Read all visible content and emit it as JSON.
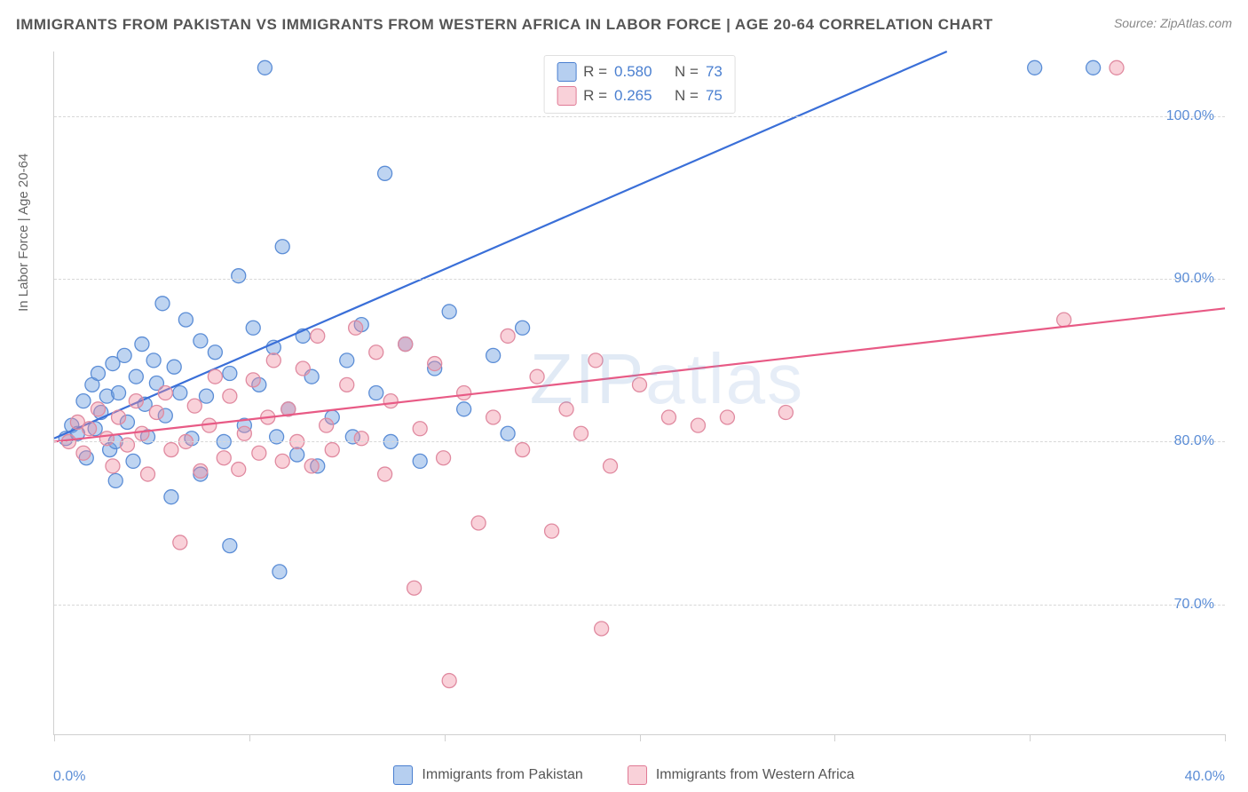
{
  "header": {
    "title": "IMMIGRANTS FROM PAKISTAN VS IMMIGRANTS FROM WESTERN AFRICA IN LABOR FORCE | AGE 20-64 CORRELATION CHART",
    "source_prefix": "Source: ",
    "source_name": "ZipAtlas.com"
  },
  "watermark": {
    "bold": "ZIP",
    "light": "atlas"
  },
  "chart": {
    "type": "scatter",
    "y_axis_title": "In Labor Force | Age 20-64",
    "xlim": [
      0,
      40
    ],
    "ylim": [
      62,
      104
    ],
    "x_ticks": [
      0,
      40
    ],
    "x_tick_labels": [
      "0.0%",
      "40.0%"
    ],
    "x_minor_ticks": [
      0,
      6.67,
      13.33,
      20,
      26.67,
      33.33,
      40
    ],
    "y_ticks": [
      70,
      80,
      90,
      100
    ],
    "y_tick_labels": [
      "70.0%",
      "80.0%",
      "90.0%",
      "100.0%"
    ],
    "grid_color": "#d8d8d8",
    "background_color": "#ffffff",
    "marker_radius": 8,
    "marker_stroke_width": 1.3,
    "line_width": 2.2,
    "series": [
      {
        "id": "pakistan",
        "label": "Immigrants from Pakistan",
        "color_fill": "rgba(110,160,225,0.45)",
        "color_stroke": "#5b8dd6",
        "line_color": "#3a6fd8",
        "R": "0.580",
        "N": "73",
        "trend": {
          "x1": 0,
          "y1": 80.2,
          "x2": 30.5,
          "y2": 104
        },
        "points": [
          [
            0.4,
            80.2
          ],
          [
            0.6,
            81.0
          ],
          [
            0.8,
            80.5
          ],
          [
            1.0,
            82.5
          ],
          [
            1.1,
            79.0
          ],
          [
            1.3,
            83.5
          ],
          [
            1.4,
            80.8
          ],
          [
            1.5,
            84.2
          ],
          [
            1.6,
            81.8
          ],
          [
            1.8,
            82.8
          ],
          [
            1.9,
            79.5
          ],
          [
            2.0,
            84.8
          ],
          [
            2.1,
            80.0
          ],
          [
            2.1,
            77.6
          ],
          [
            2.2,
            83.0
          ],
          [
            2.4,
            85.3
          ],
          [
            2.5,
            81.2
          ],
          [
            2.7,
            78.8
          ],
          [
            2.8,
            84.0
          ],
          [
            3.0,
            86.0
          ],
          [
            3.1,
            82.3
          ],
          [
            3.2,
            80.3
          ],
          [
            3.4,
            85.0
          ],
          [
            3.5,
            83.6
          ],
          [
            3.7,
            88.5
          ],
          [
            3.8,
            81.6
          ],
          [
            4.0,
            76.6
          ],
          [
            4.1,
            84.6
          ],
          [
            4.3,
            83.0
          ],
          [
            4.5,
            87.5
          ],
          [
            4.7,
            80.2
          ],
          [
            5.0,
            86.2
          ],
          [
            5.0,
            78.0
          ],
          [
            5.2,
            82.8
          ],
          [
            5.5,
            85.5
          ],
          [
            5.8,
            80.0
          ],
          [
            6.0,
            84.2
          ],
          [
            6.0,
            73.6
          ],
          [
            6.3,
            90.2
          ],
          [
            6.5,
            81.0
          ],
          [
            6.8,
            87.0
          ],
          [
            7.0,
            83.5
          ],
          [
            7.2,
            103.0
          ],
          [
            7.5,
            85.8
          ],
          [
            7.6,
            80.3
          ],
          [
            7.7,
            72.0
          ],
          [
            7.8,
            92.0
          ],
          [
            8.0,
            82.0
          ],
          [
            8.3,
            79.2
          ],
          [
            8.5,
            86.5
          ],
          [
            8.8,
            84.0
          ],
          [
            9.0,
            78.5
          ],
          [
            9.5,
            81.5
          ],
          [
            10.0,
            85.0
          ],
          [
            10.2,
            80.3
          ],
          [
            10.5,
            87.2
          ],
          [
            11.0,
            83.0
          ],
          [
            11.3,
            96.5
          ],
          [
            11.5,
            80.0
          ],
          [
            12.0,
            86.0
          ],
          [
            12.5,
            78.8
          ],
          [
            13.0,
            84.5
          ],
          [
            13.5,
            88.0
          ],
          [
            14.0,
            82.0
          ],
          [
            15.0,
            85.3
          ],
          [
            15.5,
            80.5
          ],
          [
            16.0,
            87.0
          ],
          [
            35.5,
            103.0
          ],
          [
            33.5,
            103.0
          ]
        ]
      },
      {
        "id": "western_africa",
        "label": "Immigrants from Western Africa",
        "color_fill": "rgba(240,140,160,0.4)",
        "color_stroke": "#e08aa0",
        "line_color": "#e85a85",
        "R": "0.265",
        "N": "75",
        "trend": {
          "x1": 0,
          "y1": 80.0,
          "x2": 40,
          "y2": 88.2
        },
        "points": [
          [
            0.5,
            80.0
          ],
          [
            0.8,
            81.2
          ],
          [
            1.0,
            79.3
          ],
          [
            1.2,
            80.8
          ],
          [
            1.5,
            82.0
          ],
          [
            1.8,
            80.2
          ],
          [
            2.0,
            78.5
          ],
          [
            2.2,
            81.5
          ],
          [
            2.5,
            79.8
          ],
          [
            2.8,
            82.5
          ],
          [
            3.0,
            80.5
          ],
          [
            3.2,
            78.0
          ],
          [
            3.5,
            81.8
          ],
          [
            3.8,
            83.0
          ],
          [
            4.0,
            79.5
          ],
          [
            4.3,
            73.8
          ],
          [
            4.5,
            80.0
          ],
          [
            4.8,
            82.2
          ],
          [
            5.0,
            78.2
          ],
          [
            5.3,
            81.0
          ],
          [
            5.5,
            84.0
          ],
          [
            5.8,
            79.0
          ],
          [
            6.0,
            82.8
          ],
          [
            6.3,
            78.3
          ],
          [
            6.5,
            80.5
          ],
          [
            6.8,
            83.8
          ],
          [
            7.0,
            79.3
          ],
          [
            7.3,
            81.5
          ],
          [
            7.5,
            85.0
          ],
          [
            7.8,
            78.8
          ],
          [
            8.0,
            82.0
          ],
          [
            8.3,
            80.0
          ],
          [
            8.5,
            84.5
          ],
          [
            8.8,
            78.5
          ],
          [
            9.0,
            86.5
          ],
          [
            9.3,
            81.0
          ],
          [
            9.5,
            79.5
          ],
          [
            10.0,
            83.5
          ],
          [
            10.3,
            87.0
          ],
          [
            10.5,
            80.2
          ],
          [
            11.0,
            85.5
          ],
          [
            11.3,
            78.0
          ],
          [
            11.5,
            82.5
          ],
          [
            12.0,
            86.0
          ],
          [
            12.3,
            71.0
          ],
          [
            12.5,
            80.8
          ],
          [
            13.0,
            84.8
          ],
          [
            13.3,
            79.0
          ],
          [
            13.5,
            65.3
          ],
          [
            14.0,
            83.0
          ],
          [
            14.5,
            75.0
          ],
          [
            15.0,
            81.5
          ],
          [
            15.5,
            86.5
          ],
          [
            16.0,
            79.5
          ],
          [
            16.5,
            84.0
          ],
          [
            17.0,
            74.5
          ],
          [
            17.5,
            82.0
          ],
          [
            18.0,
            80.5
          ],
          [
            18.5,
            85.0
          ],
          [
            18.7,
            68.5
          ],
          [
            19.0,
            78.5
          ],
          [
            20.0,
            83.5
          ],
          [
            21.0,
            81.5
          ],
          [
            22.0,
            81.0
          ],
          [
            23.0,
            81.5
          ],
          [
            25.0,
            81.8
          ],
          [
            34.5,
            87.5
          ],
          [
            36.3,
            103.0
          ]
        ]
      }
    ]
  },
  "legend_box": {
    "r_label": "R =",
    "n_label": "N ="
  }
}
